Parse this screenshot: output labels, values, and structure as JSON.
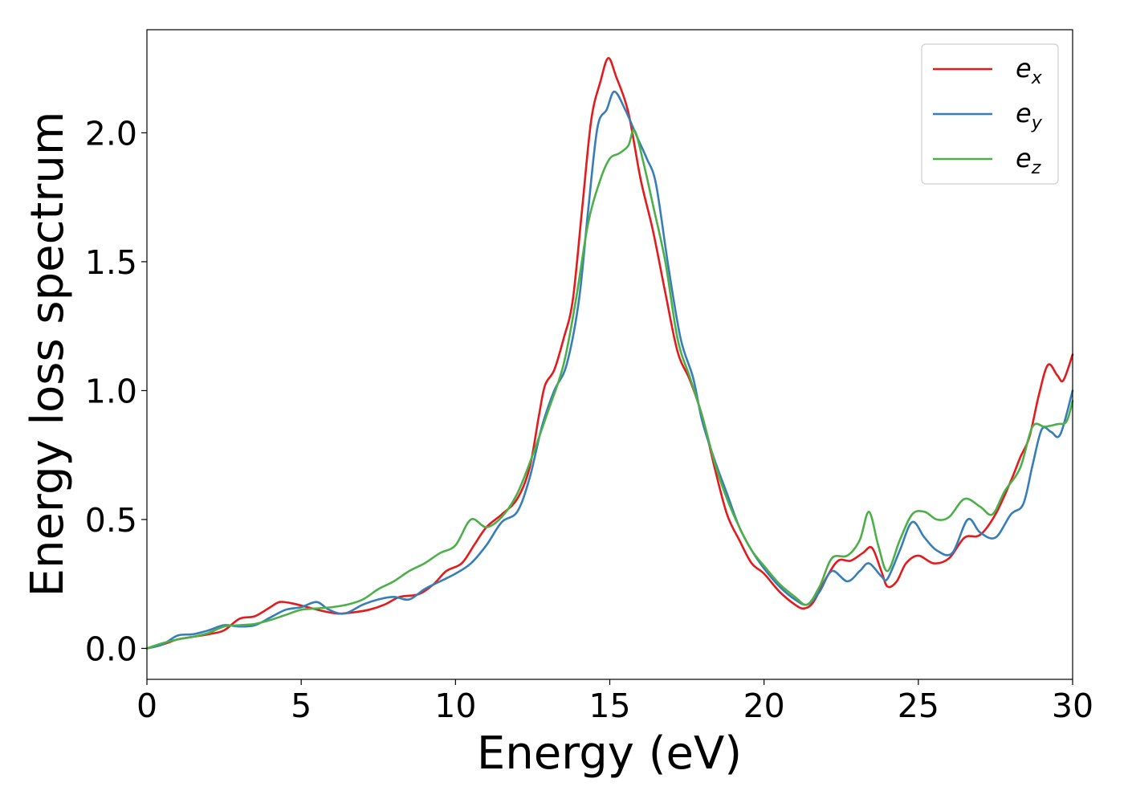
{
  "chart_data": {
    "type": "line",
    "title": "",
    "xlabel": "Energy (eV)",
    "ylabel": "Energy loss spectrum",
    "xlim": [
      0,
      30
    ],
    "ylim": [
      -0.12,
      2.4
    ],
    "x_ticks": [
      0,
      5,
      10,
      15,
      20,
      25,
      30
    ],
    "x_tick_labels": [
      "0",
      "5",
      "10",
      "15",
      "20",
      "25",
      "30"
    ],
    "y_ticks": [
      0.0,
      0.5,
      1.0,
      1.5,
      2.0
    ],
    "y_tick_labels": [
      "0.0",
      "0.5",
      "1.0",
      "1.5",
      "2.0"
    ],
    "grid": false,
    "legend_position": "top-right",
    "series": [
      {
        "name": "e_x",
        "label_base": "e",
        "label_sub": "x",
        "color": "#e41a1c",
        "points": [
          [
            0,
            0
          ],
          [
            0.5,
            0.015
          ],
          [
            1,
            0.035
          ],
          [
            1.5,
            0.045
          ],
          [
            2,
            0.055
          ],
          [
            2.5,
            0.07
          ],
          [
            3,
            0.115
          ],
          [
            3.5,
            0.125
          ],
          [
            4,
            0.16
          ],
          [
            4.3,
            0.18
          ],
          [
            4.7,
            0.175
          ],
          [
            5.2,
            0.16
          ],
          [
            5.7,
            0.145
          ],
          [
            6.2,
            0.135
          ],
          [
            6.7,
            0.14
          ],
          [
            7.2,
            0.15
          ],
          [
            7.7,
            0.17
          ],
          [
            8.2,
            0.2
          ],
          [
            8.8,
            0.21
          ],
          [
            9.3,
            0.25
          ],
          [
            9.7,
            0.3
          ],
          [
            10.2,
            0.33
          ],
          [
            10.6,
            0.4
          ],
          [
            11,
            0.47
          ],
          [
            11.5,
            0.52
          ],
          [
            12,
            0.58
          ],
          [
            12.4,
            0.7
          ],
          [
            12.7,
            0.9
          ],
          [
            12.9,
            1.02
          ],
          [
            13.2,
            1.08
          ],
          [
            13.5,
            1.2
          ],
          [
            13.8,
            1.35
          ],
          [
            14.1,
            1.7
          ],
          [
            14.4,
            2.05
          ],
          [
            14.7,
            2.2
          ],
          [
            14.95,
            2.29
          ],
          [
            15.2,
            2.22
          ],
          [
            15.6,
            2.08
          ],
          [
            16,
            1.82
          ],
          [
            16.4,
            1.62
          ],
          [
            16.8,
            1.38
          ],
          [
            17.2,
            1.15
          ],
          [
            17.6,
            1.04
          ],
          [
            18,
            0.9
          ],
          [
            18.4,
            0.7
          ],
          [
            18.8,
            0.52
          ],
          [
            19.2,
            0.42
          ],
          [
            19.6,
            0.33
          ],
          [
            20,
            0.29
          ],
          [
            20.5,
            0.22
          ],
          [
            21,
            0.17
          ],
          [
            21.3,
            0.155
          ],
          [
            21.6,
            0.18
          ],
          [
            22,
            0.27
          ],
          [
            22.4,
            0.34
          ],
          [
            22.8,
            0.34
          ],
          [
            23.2,
            0.37
          ],
          [
            23.5,
            0.39
          ],
          [
            23.8,
            0.3
          ],
          [
            24,
            0.24
          ],
          [
            24.3,
            0.26
          ],
          [
            24.6,
            0.33
          ],
          [
            25,
            0.36
          ],
          [
            25.5,
            0.33
          ],
          [
            26,
            0.35
          ],
          [
            26.5,
            0.43
          ],
          [
            27,
            0.44
          ],
          [
            27.5,
            0.52
          ],
          [
            28,
            0.65
          ],
          [
            28.3,
            0.74
          ],
          [
            28.6,
            0.82
          ],
          [
            28.9,
            0.98
          ],
          [
            29.2,
            1.1
          ],
          [
            29.5,
            1.06
          ],
          [
            29.7,
            1.04
          ],
          [
            30,
            1.14
          ]
        ]
      },
      {
        "name": "e_y",
        "label_base": "e",
        "label_sub": "y",
        "color": "#377eb8",
        "points": [
          [
            0,
            0
          ],
          [
            0.5,
            0.015
          ],
          [
            1,
            0.05
          ],
          [
            1.5,
            0.055
          ],
          [
            2,
            0.07
          ],
          [
            2.5,
            0.09
          ],
          [
            3,
            0.085
          ],
          [
            3.5,
            0.09
          ],
          [
            4,
            0.12
          ],
          [
            4.5,
            0.15
          ],
          [
            5,
            0.16
          ],
          [
            5.5,
            0.18
          ],
          [
            5.9,
            0.15
          ],
          [
            6.4,
            0.135
          ],
          [
            7,
            0.17
          ],
          [
            7.5,
            0.19
          ],
          [
            8,
            0.2
          ],
          [
            8.5,
            0.19
          ],
          [
            9,
            0.23
          ],
          [
            9.5,
            0.26
          ],
          [
            10,
            0.29
          ],
          [
            10.5,
            0.33
          ],
          [
            11,
            0.4
          ],
          [
            11.5,
            0.49
          ],
          [
            12,
            0.53
          ],
          [
            12.4,
            0.66
          ],
          [
            12.8,
            0.86
          ],
          [
            13.2,
            1.0
          ],
          [
            13.6,
            1.1
          ],
          [
            14,
            1.35
          ],
          [
            14.3,
            1.7
          ],
          [
            14.6,
            2.02
          ],
          [
            14.9,
            2.09
          ],
          [
            15.15,
            2.16
          ],
          [
            15.5,
            2.09
          ],
          [
            15.9,
            1.98
          ],
          [
            16.2,
            1.9
          ],
          [
            16.5,
            1.8
          ],
          [
            16.9,
            1.48
          ],
          [
            17.3,
            1.2
          ],
          [
            17.7,
            1.05
          ],
          [
            18,
            0.88
          ],
          [
            18.4,
            0.73
          ],
          [
            18.8,
            0.6
          ],
          [
            19.2,
            0.47
          ],
          [
            19.6,
            0.38
          ],
          [
            20,
            0.31
          ],
          [
            20.5,
            0.24
          ],
          [
            21,
            0.19
          ],
          [
            21.4,
            0.17
          ],
          [
            21.8,
            0.22
          ],
          [
            22.2,
            0.3
          ],
          [
            22.7,
            0.26
          ],
          [
            23.1,
            0.3
          ],
          [
            23.4,
            0.33
          ],
          [
            23.8,
            0.28
          ],
          [
            24,
            0.27
          ],
          [
            24.4,
            0.38
          ],
          [
            24.8,
            0.49
          ],
          [
            25.2,
            0.43
          ],
          [
            25.6,
            0.38
          ],
          [
            26.1,
            0.37
          ],
          [
            26.6,
            0.5
          ],
          [
            27,
            0.45
          ],
          [
            27.5,
            0.43
          ],
          [
            28,
            0.52
          ],
          [
            28.4,
            0.56
          ],
          [
            28.7,
            0.71
          ],
          [
            29,
            0.85
          ],
          [
            29.3,
            0.84
          ],
          [
            29.6,
            0.83
          ],
          [
            30,
            1.0
          ]
        ]
      },
      {
        "name": "e_z",
        "label_base": "e",
        "label_sub": "z",
        "color": "#4daf4a",
        "points": [
          [
            0,
            0
          ],
          [
            0.5,
            0.02
          ],
          [
            1,
            0.035
          ],
          [
            1.5,
            0.045
          ],
          [
            2,
            0.06
          ],
          [
            2.5,
            0.085
          ],
          [
            3,
            0.09
          ],
          [
            3.5,
            0.095
          ],
          [
            4,
            0.11
          ],
          [
            4.5,
            0.13
          ],
          [
            5,
            0.15
          ],
          [
            5.5,
            0.155
          ],
          [
            6,
            0.16
          ],
          [
            6.5,
            0.17
          ],
          [
            7,
            0.19
          ],
          [
            7.5,
            0.23
          ],
          [
            8,
            0.26
          ],
          [
            8.5,
            0.3
          ],
          [
            9,
            0.33
          ],
          [
            9.5,
            0.37
          ],
          [
            10,
            0.4
          ],
          [
            10.5,
            0.5
          ],
          [
            11,
            0.47
          ],
          [
            11.5,
            0.51
          ],
          [
            12,
            0.6
          ],
          [
            12.5,
            0.75
          ],
          [
            13,
            0.92
          ],
          [
            13.5,
            1.1
          ],
          [
            13.9,
            1.35
          ],
          [
            14.3,
            1.65
          ],
          [
            14.7,
            1.82
          ],
          [
            15,
            1.9
          ],
          [
            15.3,
            1.92
          ],
          [
            15.6,
            1.95
          ],
          [
            15.8,
            2.01
          ],
          [
            16.1,
            1.88
          ],
          [
            16.4,
            1.72
          ],
          [
            16.8,
            1.5
          ],
          [
            17.2,
            1.2
          ],
          [
            17.6,
            1.05
          ],
          [
            18,
            0.9
          ],
          [
            18.4,
            0.72
          ],
          [
            18.8,
            0.58
          ],
          [
            19.2,
            0.47
          ],
          [
            19.6,
            0.38
          ],
          [
            20,
            0.32
          ],
          [
            20.5,
            0.25
          ],
          [
            21,
            0.2
          ],
          [
            21.4,
            0.17
          ],
          [
            21.8,
            0.24
          ],
          [
            22.2,
            0.35
          ],
          [
            22.7,
            0.36
          ],
          [
            23.1,
            0.42
          ],
          [
            23.4,
            0.53
          ],
          [
            23.7,
            0.4
          ],
          [
            24,
            0.3
          ],
          [
            24.4,
            0.42
          ],
          [
            24.8,
            0.52
          ],
          [
            25.2,
            0.53
          ],
          [
            25.6,
            0.5
          ],
          [
            26,
            0.51
          ],
          [
            26.5,
            0.58
          ],
          [
            27,
            0.55
          ],
          [
            27.4,
            0.52
          ],
          [
            27.8,
            0.61
          ],
          [
            28.3,
            0.7
          ],
          [
            28.7,
            0.86
          ],
          [
            29.1,
            0.86
          ],
          [
            29.5,
            0.87
          ],
          [
            29.8,
            0.88
          ],
          [
            30,
            0.96
          ]
        ]
      }
    ]
  }
}
